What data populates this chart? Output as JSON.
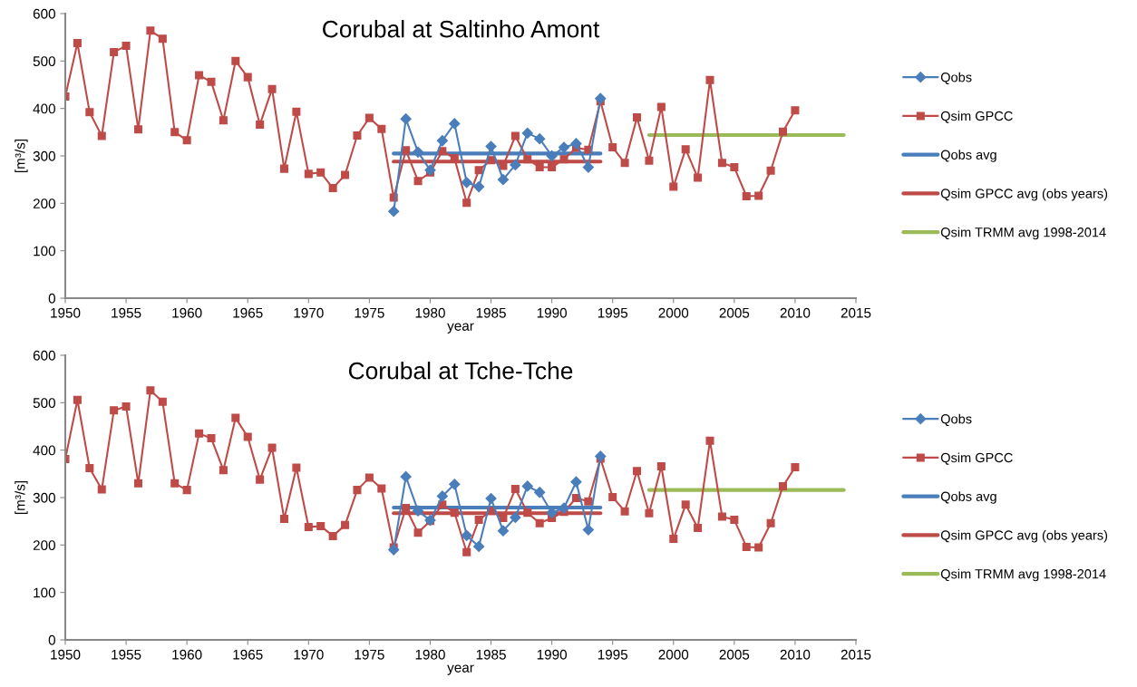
{
  "chart_data": [
    {
      "type": "line",
      "title": "Corubal at Saltinho Amont",
      "xlabel": "year",
      "ylabel": "[m³/s]",
      "xlim": [
        1950,
        2015
      ],
      "xticks": [
        1950,
        1955,
        1960,
        1965,
        1970,
        1975,
        1980,
        1985,
        1990,
        1995,
        2000,
        2005,
        2010,
        2015
      ],
      "ylim": [
        0,
        600
      ],
      "yticks": [
        0,
        100,
        200,
        300,
        400,
        500,
        600
      ],
      "grid": false,
      "legend": "right",
      "series": [
        {
          "name": "Qobs",
          "color": "#4a7ebb",
          "marker": "diamond",
          "line_style": "solid",
          "x": [
            1977,
            1978,
            1979,
            1980,
            1981,
            1982,
            1983,
            1984,
            1985,
            1986,
            1987,
            1988,
            1989,
            1990,
            1991,
            1992,
            1993,
            1994
          ],
          "values": [
            183,
            378,
            308,
            270,
            332,
            368,
            244,
            235,
            320,
            250,
            281,
            348,
            336,
            300,
            318,
            326,
            276,
            421
          ]
        },
        {
          "name": "Qsim GPCC",
          "color": "#be4b48",
          "marker": "square",
          "line_style": "solid",
          "x": [
            1950,
            1951,
            1952,
            1953,
            1954,
            1955,
            1956,
            1957,
            1958,
            1959,
            1960,
            1961,
            1962,
            1963,
            1964,
            1965,
            1966,
            1967,
            1968,
            1969,
            1970,
            1971,
            1972,
            1973,
            1974,
            1975,
            1976,
            1977,
            1978,
            1979,
            1980,
            1981,
            1982,
            1983,
            1984,
            1985,
            1986,
            1987,
            1988,
            1989,
            1990,
            1991,
            1992,
            1993,
            1994,
            1995,
            1996,
            1997,
            1998,
            1999,
            2000,
            2001,
            2002,
            2003,
            2004,
            2005,
            2006,
            2007,
            2008,
            2009,
            2010
          ],
          "values": [
            425,
            538,
            392,
            342,
            519,
            532,
            356,
            564,
            547,
            350,
            333,
            470,
            456,
            375,
            500,
            466,
            366,
            441,
            273,
            393,
            262,
            265,
            232,
            260,
            343,
            380,
            357,
            212,
            312,
            247,
            265,
            310,
            295,
            201,
            270,
            291,
            279,
            342,
            293,
            276,
            276,
            293,
            317,
            313,
            415,
            318,
            285,
            381,
            290,
            403,
            235,
            314,
            254,
            460,
            285,
            276,
            215,
            216,
            269,
            351,
            396
          ]
        },
        {
          "name": "Qobs avg",
          "color": "#4a7ebb",
          "marker": "none",
          "line_style": "solid",
          "x": [
            1977,
            1994
          ],
          "values": [
            305,
            305
          ]
        },
        {
          "name": "Qsim GPCC avg (obs years)",
          "color": "#be4b48",
          "marker": "none",
          "line_style": "solid",
          "x": [
            1977,
            1994
          ],
          "values": [
            288,
            288
          ]
        },
        {
          "name": "Qsim TRMM avg 1998-2014",
          "color": "#9bbb59",
          "marker": "none",
          "line_style": "solid",
          "x": [
            1998,
            2014
          ],
          "values": [
            344,
            344
          ]
        }
      ]
    },
    {
      "type": "line",
      "title": "Corubal at Tche-Tche",
      "xlabel": "year",
      "ylabel": "[m³/s]",
      "xlim": [
        1950,
        2015
      ],
      "xticks": [
        1950,
        1955,
        1960,
        1965,
        1970,
        1975,
        1980,
        1985,
        1990,
        1995,
        2000,
        2005,
        2010,
        2015
      ],
      "ylim": [
        0,
        600
      ],
      "yticks": [
        0,
        100,
        200,
        300,
        400,
        500,
        600
      ],
      "grid": false,
      "legend": "right",
      "series": [
        {
          "name": "Qobs",
          "color": "#4a7ebb",
          "marker": "diamond",
          "line_style": "solid",
          "x": [
            1977,
            1978,
            1979,
            1980,
            1981,
            1982,
            1983,
            1984,
            1985,
            1986,
            1987,
            1988,
            1989,
            1990,
            1991,
            1992,
            1993,
            1994
          ],
          "values": [
            190,
            344,
            272,
            252,
            303,
            328,
            220,
            197,
            298,
            230,
            258,
            324,
            311,
            268,
            278,
            333,
            232,
            387
          ]
        },
        {
          "name": "Qsim GPCC",
          "color": "#be4b48",
          "marker": "square",
          "line_style": "solid",
          "x": [
            1950,
            1951,
            1952,
            1953,
            1954,
            1955,
            1956,
            1957,
            1958,
            1959,
            1960,
            1961,
            1962,
            1963,
            1964,
            1965,
            1966,
            1967,
            1968,
            1969,
            1970,
            1971,
            1972,
            1973,
            1974,
            1975,
            1976,
            1977,
            1978,
            1979,
            1980,
            1981,
            1982,
            1983,
            1984,
            1985,
            1986,
            1987,
            1988,
            1989,
            1990,
            1991,
            1992,
            1993,
            1994,
            1995,
            1996,
            1997,
            1998,
            1999,
            2000,
            2001,
            2002,
            2003,
            2004,
            2005,
            2006,
            2007,
            2008,
            2009,
            2010
          ],
          "values": [
            381,
            506,
            362,
            317,
            484,
            492,
            330,
            526,
            502,
            330,
            316,
            435,
            425,
            358,
            468,
            428,
            338,
            405,
            255,
            363,
            238,
            240,
            219,
            242,
            316,
            342,
            319,
            195,
            278,
            226,
            251,
            285,
            268,
            185,
            253,
            272,
            257,
            318,
            268,
            246,
            257,
            270,
            299,
            292,
            382,
            301,
            271,
            356,
            267,
            366,
            213,
            285,
            236,
            420,
            260,
            253,
            196,
            195,
            246,
            324,
            364
          ]
        },
        {
          "name": "Qobs avg",
          "color": "#4a7ebb",
          "marker": "none",
          "line_style": "solid",
          "x": [
            1977,
            1994
          ],
          "values": [
            279,
            279
          ]
        },
        {
          "name": "Qsim GPCC avg (obs years)",
          "color": "#be4b48",
          "marker": "none",
          "line_style": "solid",
          "x": [
            1977,
            1994
          ],
          "values": [
            267,
            267
          ]
        },
        {
          "name": "Qsim TRMM avg 1998-2014",
          "color": "#9bbb59",
          "marker": "none",
          "line_style": "solid",
          "x": [
            1998,
            2014
          ],
          "values": [
            316,
            316
          ]
        }
      ]
    }
  ]
}
